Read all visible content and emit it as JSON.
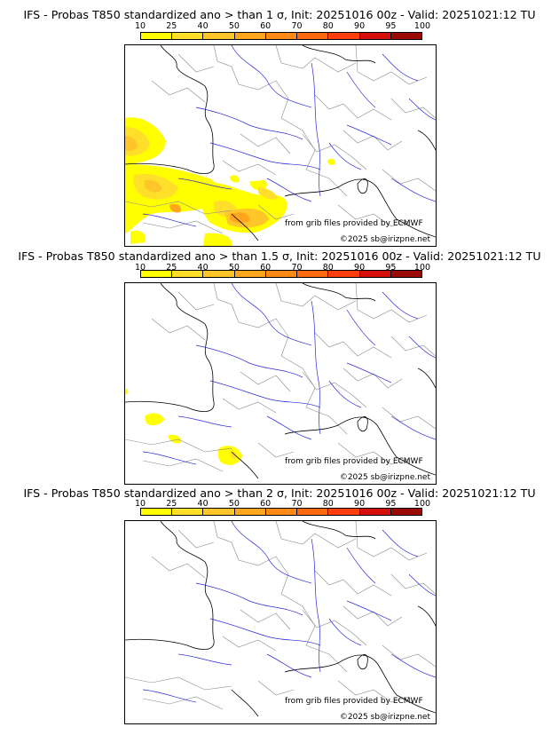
{
  "legend": {
    "ticks": [
      "10",
      "25",
      "40",
      "50",
      "60",
      "70",
      "80",
      "90",
      "95",
      "100"
    ],
    "colors": [
      "#ffff00",
      "#ffdf2a",
      "#ffc62a",
      "#ffa51e",
      "#ff8a17",
      "#ff6a10",
      "#ff3d0d",
      "#d40f0a",
      "#9a0a06",
      "#5e0403"
    ]
  },
  "panels": [
    {
      "title": "IFS - Probas T850  standardized ano > than 1 σ, Init: 20251016 00z - Valid: 20251021:12 TU",
      "source_note": "from grib files provided by ECMWF",
      "copyright": "©2025 sb@irizpne.net"
    },
    {
      "title": "IFS - Probas T850  standardized ano > than 1.5 σ, Init: 20251016 00z - Valid: 20251021:12 TU",
      "source_note": "from grib files provided by ECMWF",
      "copyright": "©2025 sb@irizpne.net"
    },
    {
      "title": "IFS - Probas T850  standardized ano > than 2 σ, Init: 20251016 00z - Valid: 20251021:12 TU",
      "source_note": "from grib files provided by ECMWF",
      "copyright": "©2025 sb@irizpne.net"
    }
  ]
}
